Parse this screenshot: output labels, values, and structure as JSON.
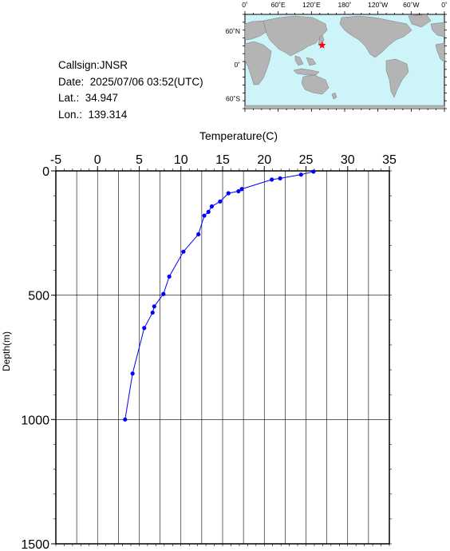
{
  "info": {
    "callsign": "Callsign:JNSR",
    "date": "Date:  2025/07/06 03:52(UTC)",
    "lat": "Lat.:  34.947",
    "lon": "Lon.:  139.314"
  },
  "map": {
    "lon_labels": [
      "0˚",
      "60˚E",
      "120˚E",
      "180˚",
      "120˚W",
      "60˚W",
      "0˚"
    ],
    "lat_labels": [
      "60˚N",
      "0˚",
      "60˚S"
    ],
    "station": {
      "lat": 34.947,
      "lon": 139.314
    },
    "colors": {
      "ocean": "#cdf4f9",
      "land": "#b4b4b4",
      "marker": "#ff0000"
    }
  },
  "chart_data": {
    "type": "line",
    "title": "",
    "xlabel": "Temperature(C)",
    "ylabel": "Depth(m)",
    "xlim": [
      -5,
      35
    ],
    "ylim": [
      0,
      1500
    ],
    "x_ticks": [
      "-5",
      "0",
      "5",
      "10",
      "15",
      "20",
      "25",
      "30",
      "35"
    ],
    "y_ticks": [
      "0",
      "500",
      "1000",
      "1500"
    ],
    "series": [
      {
        "color": "#0000ff",
        "points": [
          {
            "t": 25.9,
            "d": 3
          },
          {
            "t": 24.4,
            "d": 15
          },
          {
            "t": 21.9,
            "d": 30
          },
          {
            "t": 20.9,
            "d": 35
          },
          {
            "t": 17.3,
            "d": 73
          },
          {
            "t": 16.9,
            "d": 82
          },
          {
            "t": 15.7,
            "d": 90
          },
          {
            "t": 14.7,
            "d": 123
          },
          {
            "t": 13.7,
            "d": 143
          },
          {
            "t": 13.3,
            "d": 165
          },
          {
            "t": 12.8,
            "d": 180
          },
          {
            "t": 12.1,
            "d": 255
          },
          {
            "t": 10.3,
            "d": 325
          },
          {
            "t": 8.6,
            "d": 425
          },
          {
            "t": 7.9,
            "d": 495
          },
          {
            "t": 6.8,
            "d": 545
          },
          {
            "t": 6.6,
            "d": 570
          },
          {
            "t": 5.6,
            "d": 632
          },
          {
            "t": 4.2,
            "d": 815
          },
          {
            "t": 3.3,
            "d": 1000
          }
        ]
      }
    ],
    "grid": true
  }
}
